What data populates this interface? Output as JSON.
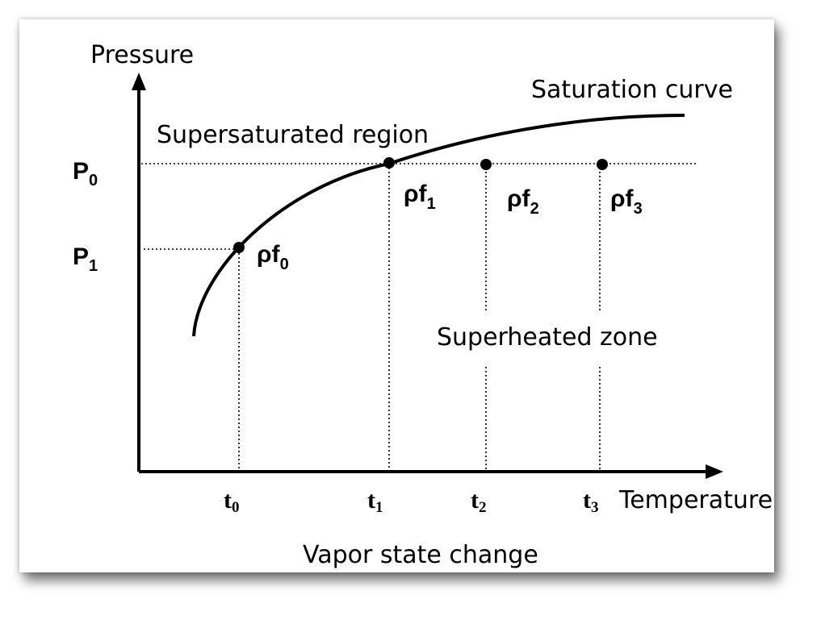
{
  "axes": {
    "y_label": "Pressure",
    "x_label": "Temperature"
  },
  "curve_label": "Saturation curve",
  "regions": {
    "supersaturated": "Supersaturated region",
    "superheated": "Superheated zone"
  },
  "pressure_levels": [
    {
      "main": "P",
      "sub": "0"
    },
    {
      "main": "P",
      "sub": "1"
    }
  ],
  "temperature_ticks": [
    {
      "main": "t",
      "sub": "0"
    },
    {
      "main": "t",
      "sub": "1"
    },
    {
      "main": "t",
      "sub": "2"
    },
    {
      "main": "t",
      "sub": "3"
    }
  ],
  "points": [
    {
      "main": "ρf",
      "sub": "0"
    },
    {
      "main": "ρf",
      "sub": "1"
    },
    {
      "main": "ρf",
      "sub": "2"
    },
    {
      "main": "ρf",
      "sub": "3"
    }
  ],
  "caption": "Vapor state change"
}
